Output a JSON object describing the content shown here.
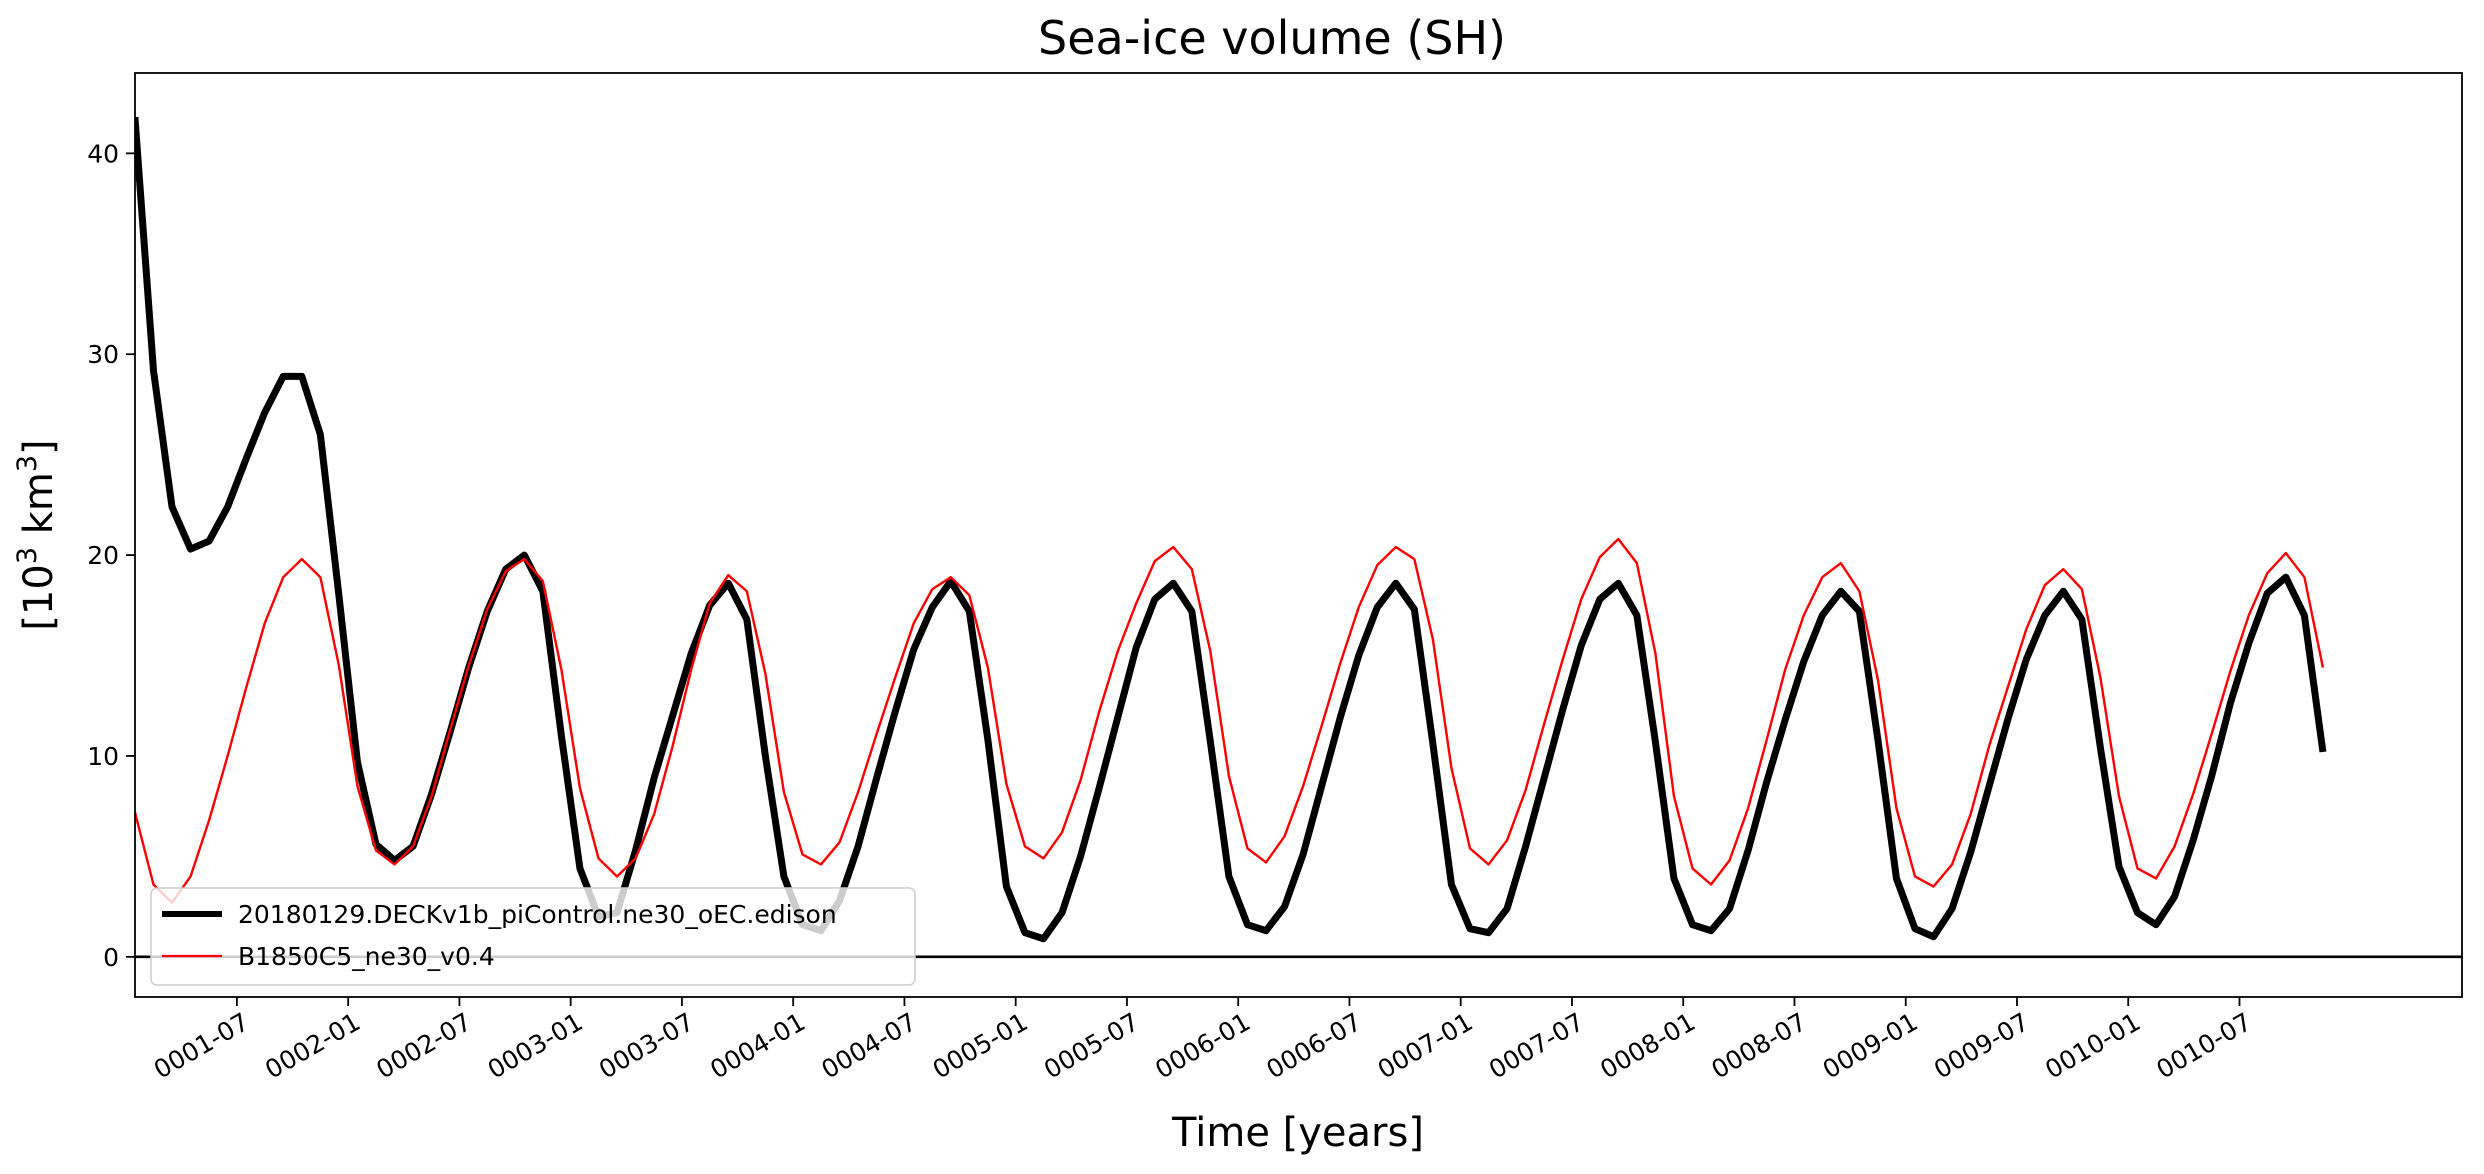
{
  "chart_data": {
    "type": "line",
    "title": "Sea-ice volume (SH)",
    "xlabel": "Time [years]",
    "ylabel_base": "[10",
    "ylabel_sup1": "3",
    "ylabel_mid": " km",
    "ylabel_sup2": "3",
    "ylabel_end": "]",
    "xlim": [
      0.042,
      10.5
    ],
    "ylim": [
      -2,
      44
    ],
    "y_ticks": [
      0,
      10,
      20,
      30,
      40
    ],
    "x_ticks": [
      {
        "pos": 0.5,
        "label": "0001-07"
      },
      {
        "pos": 1.0,
        "label": "0002-01"
      },
      {
        "pos": 1.5,
        "label": "0002-07"
      },
      {
        "pos": 2.0,
        "label": "0003-01"
      },
      {
        "pos": 2.5,
        "label": "0003-07"
      },
      {
        "pos": 3.0,
        "label": "0004-01"
      },
      {
        "pos": 3.5,
        "label": "0004-07"
      },
      {
        "pos": 4.0,
        "label": "0005-01"
      },
      {
        "pos": 4.5,
        "label": "0005-07"
      },
      {
        "pos": 5.0,
        "label": "0006-01"
      },
      {
        "pos": 5.5,
        "label": "0006-07"
      },
      {
        "pos": 6.0,
        "label": "0007-01"
      },
      {
        "pos": 6.5,
        "label": "0007-07"
      },
      {
        "pos": 7.0,
        "label": "0008-01"
      },
      {
        "pos": 7.5,
        "label": "0008-07"
      },
      {
        "pos": 8.0,
        "label": "0009-01"
      },
      {
        "pos": 8.5,
        "label": "0009-07"
      },
      {
        "pos": 9.0,
        "label": "0010-01"
      },
      {
        "pos": 9.5,
        "label": "0010-07"
      }
    ],
    "hline": 0,
    "legend_position": "lower-left",
    "series": [
      {
        "name": "20180129.DECKv1b_piControl.ne30_oEC.edison",
        "color": "#000000",
        "values": [
          41.8,
          29.2,
          22.4,
          20.3,
          20.7,
          22.4,
          24.8,
          27.1,
          28.9,
          28.9,
          26.0,
          18.0,
          9.7,
          5.6,
          4.8,
          5.5,
          8.1,
          11.2,
          14.4,
          17.2,
          19.3,
          20.0,
          18.2,
          11.0,
          4.4,
          2.0,
          2.2,
          5.3,
          8.9,
          12.0,
          15.1,
          17.5,
          18.6,
          16.8,
          10.0,
          4.0,
          1.6,
          1.3,
          2.8,
          5.5,
          8.9,
          12.2,
          15.3,
          17.4,
          18.7,
          17.2,
          10.8,
          3.5,
          1.2,
          0.9,
          2.2,
          5.0,
          8.4,
          11.9,
          15.4,
          17.8,
          18.6,
          17.2,
          10.7,
          4.0,
          1.6,
          1.3,
          2.5,
          5.1,
          8.5,
          11.9,
          15.0,
          17.4,
          18.6,
          17.3,
          10.6,
          3.6,
          1.4,
          1.2,
          2.4,
          5.5,
          8.9,
          12.3,
          15.5,
          17.8,
          18.6,
          17.0,
          10.7,
          3.9,
          1.6,
          1.3,
          2.4,
          5.3,
          8.7,
          11.8,
          14.7,
          17.0,
          18.2,
          17.2,
          10.8,
          3.9,
          1.4,
          1.0,
          2.4,
          5.2,
          8.5,
          11.8,
          14.8,
          17.0,
          18.2,
          16.8,
          10.4,
          4.5,
          2.2,
          1.6,
          3.0,
          5.8,
          9.0,
          12.6,
          15.6,
          18.1,
          18.9,
          17.0,
          10.2
        ]
      },
      {
        "name": "B1850C5_ne30_v0.4",
        "color": "#ff0000",
        "values": [
          7.2,
          3.6,
          2.7,
          4.0,
          6.8,
          10.0,
          13.4,
          16.6,
          18.9,
          19.8,
          18.9,
          14.5,
          8.5,
          5.3,
          4.6,
          5.5,
          8.0,
          11.3,
          14.5,
          17.3,
          19.2,
          19.8,
          18.7,
          14.3,
          8.4,
          4.9,
          4.0,
          4.9,
          7.1,
          10.5,
          14.3,
          17.6,
          19.0,
          18.2,
          14.1,
          8.2,
          5.1,
          4.6,
          5.7,
          8.2,
          11.1,
          13.9,
          16.6,
          18.3,
          18.9,
          18.0,
          14.4,
          8.6,
          5.5,
          4.9,
          6.2,
          8.8,
          12.2,
          15.2,
          17.6,
          19.7,
          20.4,
          19.3,
          15.2,
          9.0,
          5.4,
          4.7,
          6.0,
          8.5,
          11.5,
          14.6,
          17.4,
          19.5,
          20.4,
          19.8,
          15.8,
          9.4,
          5.4,
          4.6,
          5.8,
          8.3,
          11.6,
          14.8,
          17.8,
          19.9,
          20.8,
          19.6,
          15.1,
          8.0,
          4.4,
          3.6,
          4.8,
          7.4,
          10.8,
          14.3,
          17.0,
          18.9,
          19.6,
          18.2,
          13.8,
          7.4,
          4.0,
          3.5,
          4.6,
          7.1,
          10.5,
          13.4,
          16.3,
          18.5,
          19.3,
          18.3,
          13.9,
          8.0,
          4.4,
          3.9,
          5.5,
          8.1,
          11.1,
          14.2,
          17.0,
          19.1,
          20.1,
          18.9,
          14.4
        ]
      }
    ]
  }
}
